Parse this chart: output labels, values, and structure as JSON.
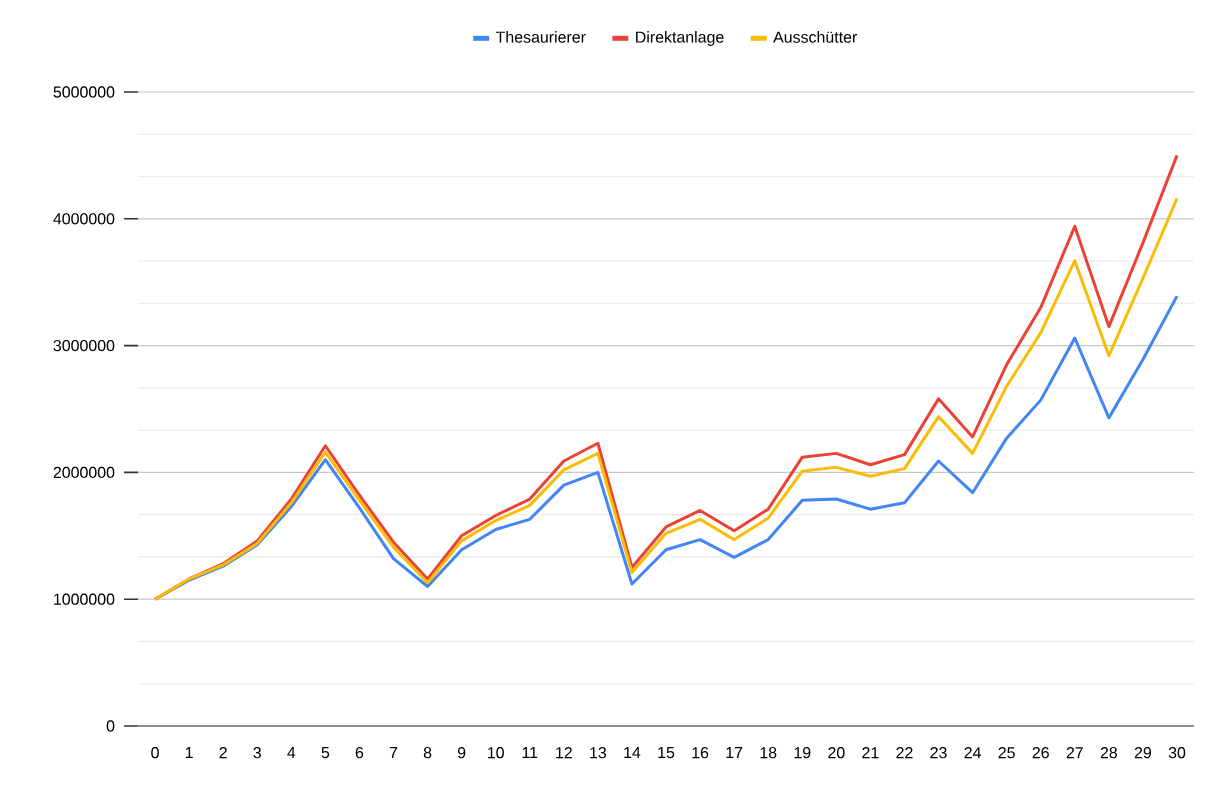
{
  "chart_data": {
    "type": "line",
    "categories": [
      "0",
      "1",
      "2",
      "3",
      "4",
      "5",
      "6",
      "7",
      "8",
      "9",
      "10",
      "11",
      "12",
      "13",
      "14",
      "15",
      "16",
      "17",
      "18",
      "19",
      "20",
      "21",
      "22",
      "23",
      "24",
      "25",
      "26",
      "27",
      "28",
      "29",
      "30"
    ],
    "series": [
      {
        "name": "Thesaurierer",
        "color": "#4285f4",
        "values": [
          1000000,
          1150000,
          1260000,
          1430000,
          1730000,
          2100000,
          1720000,
          1320000,
          1100000,
          1390000,
          1550000,
          1630000,
          1900000,
          2000000,
          1120000,
          1390000,
          1470000,
          1330000,
          1470000,
          1780000,
          1790000,
          1710000,
          1760000,
          2090000,
          1840000,
          2270000,
          2570000,
          3060000,
          2430000,
          2890000,
          3390000
        ]
      },
      {
        "name": "Direktanlage",
        "color": "#ea4335",
        "values": [
          1000000,
          1160000,
          1280000,
          1460000,
          1790000,
          2210000,
          1820000,
          1450000,
          1160000,
          1500000,
          1660000,
          1790000,
          2090000,
          2230000,
          1250000,
          1570000,
          1700000,
          1540000,
          1710000,
          2120000,
          2150000,
          2060000,
          2140000,
          2580000,
          2280000,
          2850000,
          3300000,
          3940000,
          3150000,
          3810000,
          4500000
        ]
      },
      {
        "name": "Ausschütter",
        "color": "#fbbc04",
        "values": [
          1000000,
          1160000,
          1270000,
          1440000,
          1760000,
          2160000,
          1780000,
          1410000,
          1130000,
          1460000,
          1620000,
          1740000,
          2020000,
          2150000,
          1210000,
          1520000,
          1630000,
          1470000,
          1640000,
          2010000,
          2040000,
          1970000,
          2030000,
          2440000,
          2150000,
          2680000,
          3100000,
          3670000,
          2920000,
          3530000,
          4160000
        ]
      }
    ],
    "ylim": [
      0,
      5000000
    ],
    "yticks": [
      0,
      1000000,
      2000000,
      3000000,
      4000000,
      5000000
    ],
    "grid": "y",
    "legend": "top",
    "marker": "none",
    "line_style": "solid"
  }
}
